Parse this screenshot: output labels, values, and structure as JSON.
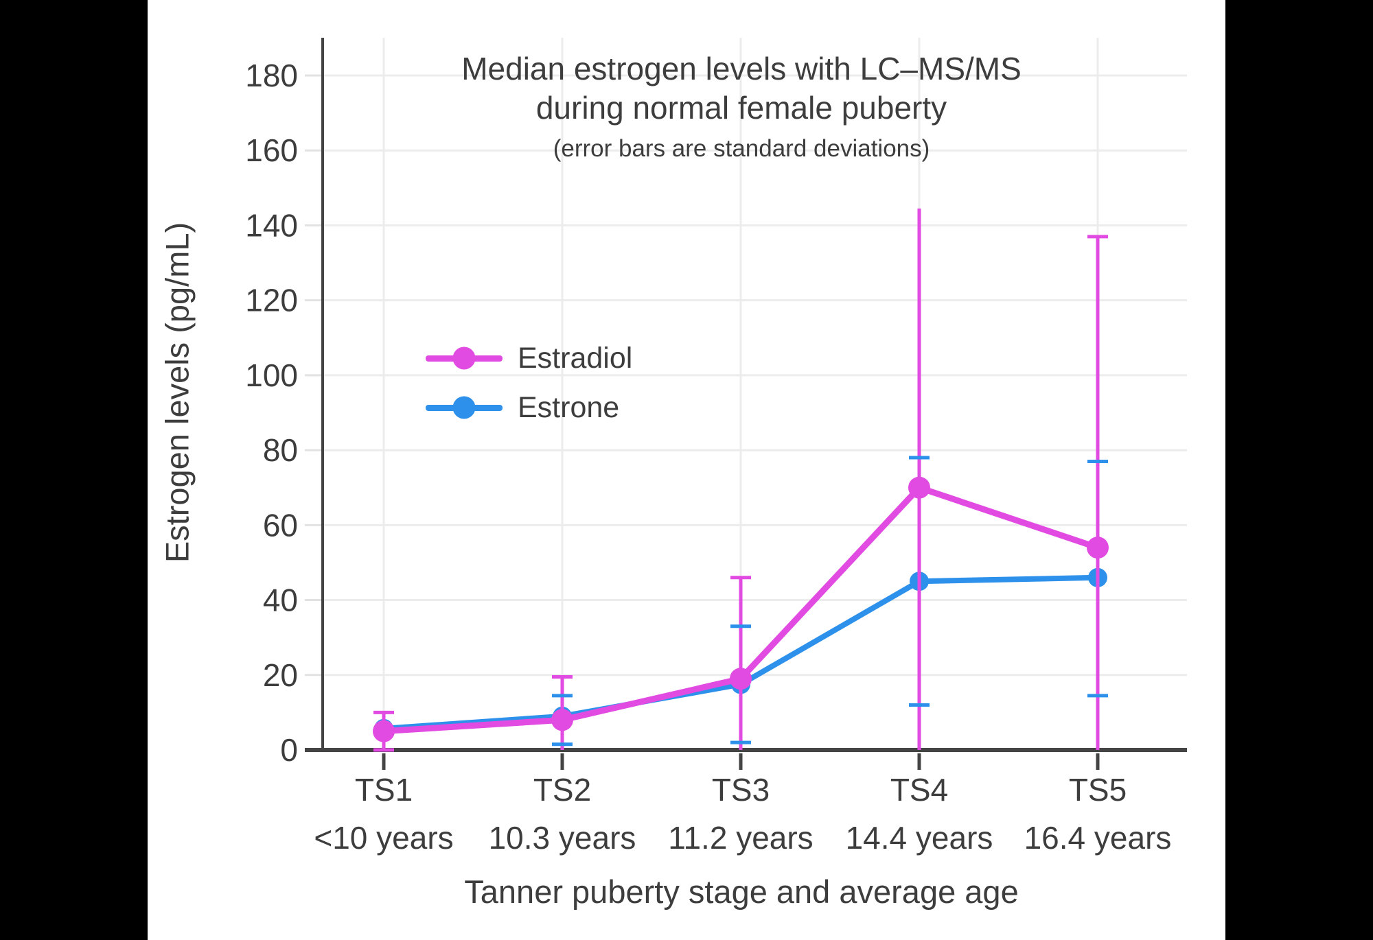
{
  "figure": {
    "outer_background": "#000000",
    "content_background": "#ffffff",
    "text_color": "#3d3d3d",
    "axis_color": "#444444",
    "gridline_color": "#ececec"
  },
  "header": {
    "title_line1": "Median estrogen levels with LC–MS/MS",
    "title_line2": "during normal female puberty",
    "subtitle": "(error bars are standard deviations)"
  },
  "axes": {
    "ylabel": "Estrogen levels (pg/mL)",
    "xlabel": "Tanner puberty stage and average age"
  },
  "legend": {
    "items": [
      {
        "label": "Estradiol",
        "color": "#E14BE1"
      },
      {
        "label": "Estrone",
        "color": "#2D91EB"
      }
    ]
  },
  "chart_data": {
    "type": "line",
    "title": "Median estrogen levels with LC–MS/MS during normal female puberty",
    "subtitle": "(error bars are standard deviations)",
    "xlabel": "Tanner puberty stage and average age",
    "ylabel": "Estrogen levels (pg/mL)",
    "ylim": [
      0,
      190
    ],
    "yticks": [
      0,
      20,
      40,
      60,
      80,
      100,
      120,
      140,
      160,
      180
    ],
    "grid": true,
    "legend_position": "inside-upper-left",
    "categories": [
      "TS1",
      "TS2",
      "TS3",
      "TS4",
      "TS5"
    ],
    "category_ages": [
      "<10 years",
      "10.3 years",
      "11.2 years",
      "14.4 years",
      "16.4 years"
    ],
    "series": [
      {
        "name": "Estradiol",
        "color": "#E14BE1",
        "values": [
          5,
          8,
          19,
          70,
          54
        ],
        "error_top": [
          10,
          19.5,
          46,
          144.5,
          137
        ],
        "error_bottom": [
          0,
          0,
          0,
          0,
          0
        ],
        "top_cap": [
          true,
          true,
          true,
          false,
          true
        ],
        "bottom_cap": [
          true,
          false,
          false,
          false,
          false
        ]
      },
      {
        "name": "Estrone",
        "color": "#2D91EB",
        "values": [
          5.7,
          9,
          17.5,
          45,
          46
        ],
        "error_top": [
          null,
          14.5,
          33,
          78,
          77
        ],
        "error_bottom": [
          null,
          1.5,
          2,
          12,
          14.5
        ],
        "top_cap": [
          false,
          true,
          true,
          true,
          true
        ],
        "bottom_cap": [
          false,
          true,
          true,
          true,
          true
        ]
      }
    ]
  }
}
